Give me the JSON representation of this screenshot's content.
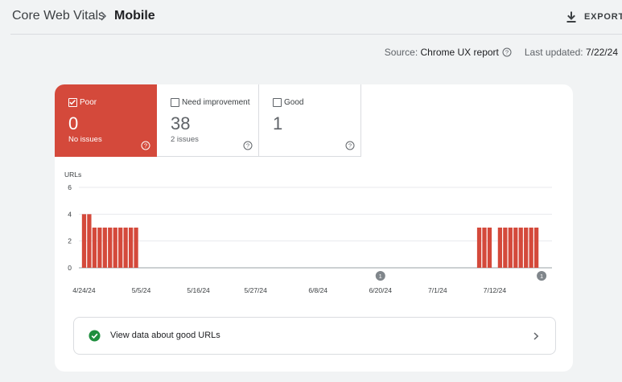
{
  "header": {
    "breadcrumb_root": "Core Web Vitals",
    "breadcrumb_current": "Mobile",
    "export_label": "EXPORT"
  },
  "meta": {
    "source_label": "Source:",
    "source_value": "Chrome UX report",
    "updated_label": "Last updated:",
    "updated_value": "7/22/24"
  },
  "tiles": [
    {
      "label": "Poor",
      "count": "0",
      "sub": "No issues",
      "checked": true,
      "color": "#d4493b"
    },
    {
      "label": "Need improvement",
      "count": "38",
      "sub": "2 issues",
      "checked": false
    },
    {
      "label": "Good",
      "count": "1",
      "sub": "",
      "checked": false
    }
  ],
  "banner": {
    "text": "View data about good URLs",
    "icon": "check-circle-icon",
    "icon_color": "#1e8e3e"
  },
  "chart_data": {
    "type": "bar",
    "ylabel": "URLs",
    "ylim": [
      0,
      6
    ],
    "yticks": [
      0,
      2,
      4,
      6
    ],
    "series_color": "#d4493b",
    "x_tick_labels": [
      "4/24/24",
      "5/5/24",
      "5/16/24",
      "5/27/24",
      "6/8/24",
      "6/20/24",
      "7/1/24",
      "7/12/24"
    ],
    "x_range": [
      "4/23/24",
      "7/23/24"
    ],
    "bars": [
      {
        "date": "4/24/24",
        "value": 4
      },
      {
        "date": "4/25/24",
        "value": 4
      },
      {
        "date": "4/26/24",
        "value": 3
      },
      {
        "date": "4/27/24",
        "value": 3
      },
      {
        "date": "4/28/24",
        "value": 3
      },
      {
        "date": "4/29/24",
        "value": 3
      },
      {
        "date": "4/30/24",
        "value": 3
      },
      {
        "date": "5/1/24",
        "value": 3
      },
      {
        "date": "5/2/24",
        "value": 3
      },
      {
        "date": "5/3/24",
        "value": 3
      },
      {
        "date": "5/4/24",
        "value": 3
      },
      {
        "date": "7/9/24",
        "value": 3
      },
      {
        "date": "7/10/24",
        "value": 3
      },
      {
        "date": "7/11/24",
        "value": 3
      },
      {
        "date": "7/13/24",
        "value": 3
      },
      {
        "date": "7/14/24",
        "value": 3
      },
      {
        "date": "7/15/24",
        "value": 3
      },
      {
        "date": "7/16/24",
        "value": 3
      },
      {
        "date": "7/17/24",
        "value": 3
      },
      {
        "date": "7/18/24",
        "value": 3
      },
      {
        "date": "7/19/24",
        "value": 3
      },
      {
        "date": "7/20/24",
        "value": 3
      }
    ],
    "annotations": [
      {
        "date": "6/20/24",
        "label": "1"
      },
      {
        "date": "7/21/24",
        "label": "1"
      }
    ]
  }
}
